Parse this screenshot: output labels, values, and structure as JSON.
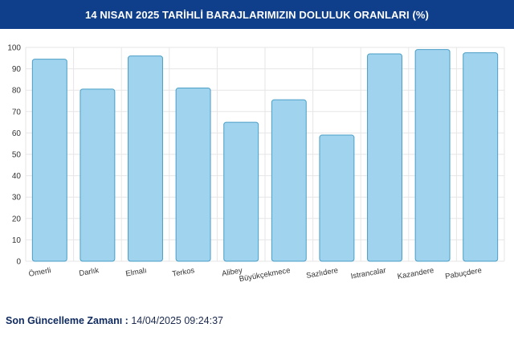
{
  "header": {
    "title": "14 NISAN 2025 TARİHLİ BARAJLARIMIZIN DOLULUK ORANLARI (%)"
  },
  "footer": {
    "label": "Son Güncelleme Zamanı :",
    "value": "14/04/2025 09:24:37"
  },
  "colors": {
    "header_bg": "#0f3f8a",
    "bar_fill": "#9fd3ee",
    "bar_stroke": "#4b9fc7",
    "grid": "#e6e6e6"
  },
  "chart_data": {
    "type": "bar",
    "categories": [
      "Ömerli",
      "Darlık",
      "Elmalı",
      "Terkos",
      "Alibey",
      "Büyükçekmece",
      "Sazlıdere",
      "Istrancalar",
      "Kazandere",
      "Pabuçdere"
    ],
    "values": [
      94.5,
      80.5,
      96,
      81,
      65,
      75.5,
      59,
      97,
      99,
      97.5
    ],
    "yticks": [
      0,
      10,
      20,
      30,
      40,
      50,
      60,
      70,
      80,
      90,
      100
    ],
    "ylim": [
      0,
      100
    ],
    "grid": true,
    "title": "",
    "xlabel": "",
    "ylabel": ""
  }
}
